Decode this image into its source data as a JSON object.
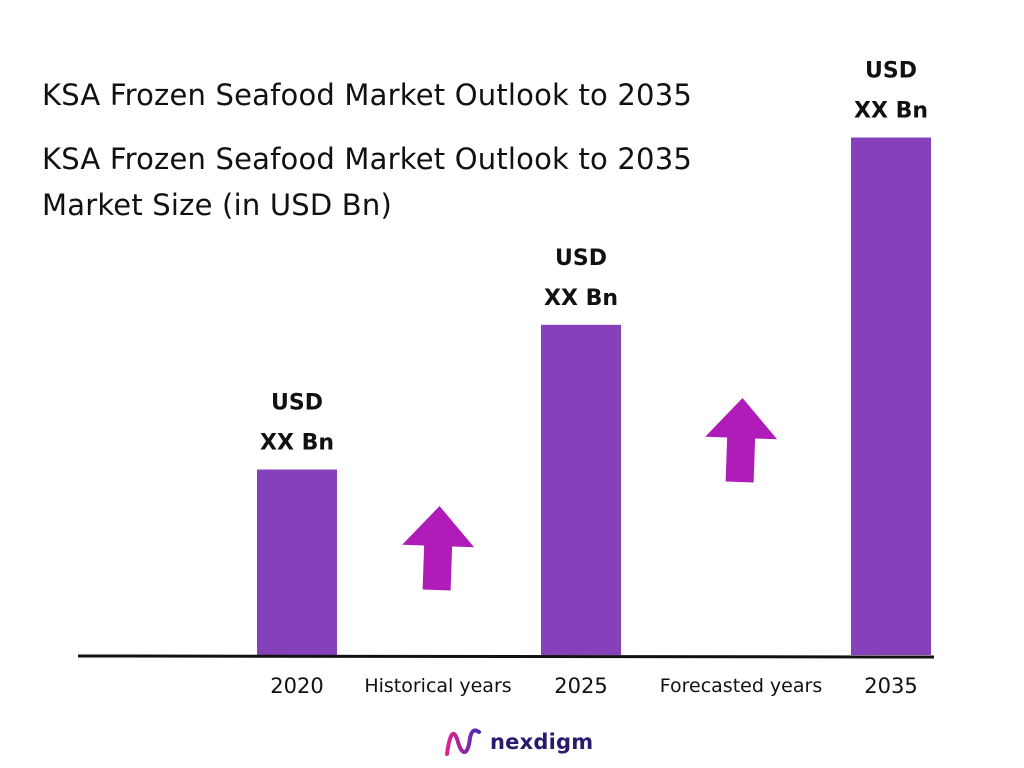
{
  "title": "KSA Frozen Seafood Market Outlook to 2035",
  "subtitle_line1": "KSA Frozen Seafood Market Outlook to 2035",
  "subtitle_line2": "Market Size (in USD Bn)",
  "brand": {
    "name": "nexdigm",
    "logo_icon": "nexdigm-logo-icon"
  },
  "colors": {
    "bar": "#8540ba",
    "arrow": "#b01cb8",
    "axis": "#111111",
    "text": "#111111",
    "brand_text": "#2a1a6e"
  },
  "chart_data": {
    "type": "bar",
    "categories": [
      "2020",
      "2025",
      "2035"
    ],
    "values": [
      1.0,
      1.78,
      2.79
    ],
    "data_labels": [
      [
        "USD",
        "XX Bn"
      ],
      [
        "USD",
        "XX Bn"
      ],
      [
        "USD",
        "XX Bn"
      ]
    ],
    "period_labels": [
      "Historical years",
      "Forecasted years"
    ],
    "period_icons": [
      "up-arrow-icon",
      "up-arrow-icon"
    ],
    "ylim": [
      0,
      3.1
    ],
    "grid": false,
    "legend": "none"
  }
}
